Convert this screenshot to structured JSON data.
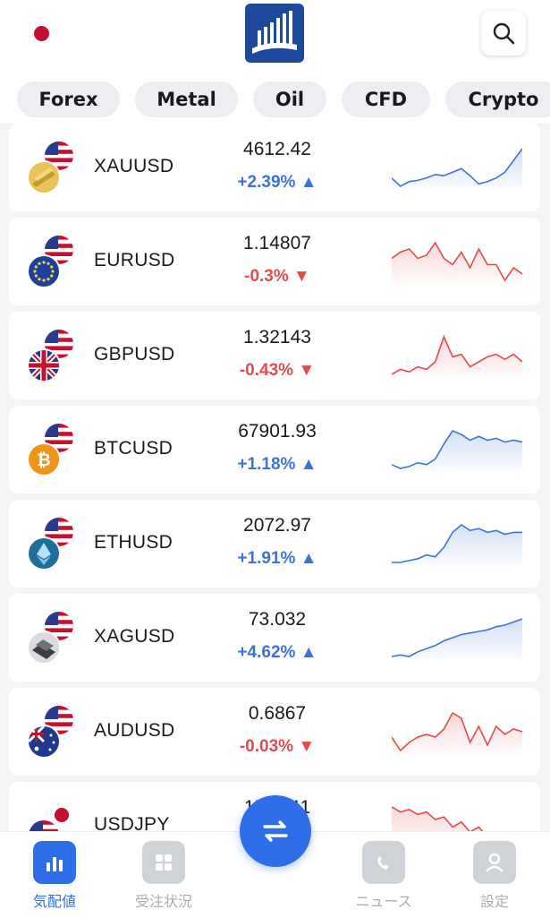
{
  "header": {
    "flag_icon": "japan-flag-icon",
    "logo_icon": "bar-chart-logo-icon",
    "search_icon": "search-icon"
  },
  "tabs": [
    {
      "label": "Forex"
    },
    {
      "label": "Metal"
    },
    {
      "label": "Oil"
    },
    {
      "label": "CFD"
    },
    {
      "label": "Crypto"
    }
  ],
  "instruments": [
    {
      "symbol": "XAUUSD",
      "price": "4612.42",
      "change": "+2.39%",
      "trend": "up",
      "base_icon": "gold-bars-icon",
      "spark": [
        55,
        48,
        52,
        53,
        55,
        58,
        57,
        60,
        63,
        57,
        50,
        52,
        55,
        60,
        70,
        80
      ]
    },
    {
      "symbol": "EURUSD",
      "price": "1.14807",
      "change": "-0.3%",
      "trend": "down",
      "base_icon": "eu-flag-icon",
      "spark": [
        60,
        62,
        63,
        60,
        61,
        65,
        60,
        58,
        62,
        57,
        63,
        58,
        58,
        53,
        57,
        55
      ]
    },
    {
      "symbol": "GBPUSD",
      "price": "1.32143",
      "change": "-0.43%",
      "trend": "down",
      "base_icon": "uk-flag-icon",
      "spark": [
        55,
        57,
        56,
        58,
        57,
        60,
        70,
        62,
        63,
        58,
        60,
        62,
        63,
        61,
        63,
        60
      ]
    },
    {
      "symbol": "BTCUSD",
      "price": "67901.93",
      "change": "+1.18%",
      "trend": "up",
      "base_icon": "bitcoin-icon",
      "spark": [
        52,
        50,
        51,
        53,
        52,
        55,
        63,
        70,
        68,
        65,
        67,
        65,
        66,
        64,
        65,
        64
      ]
    },
    {
      "symbol": "ETHUSD",
      "price": "2072.97",
      "change": "+1.91%",
      "trend": "up",
      "base_icon": "ethereum-icon",
      "spark": [
        50,
        50,
        51,
        52,
        54,
        53,
        58,
        66,
        70,
        67,
        68,
        66,
        67,
        65,
        66,
        66
      ]
    },
    {
      "symbol": "XAGUSD",
      "price": "73.032",
      "change": "+4.62%",
      "trend": "up",
      "base_icon": "silver-bars-icon",
      "spark": [
        50,
        51,
        50,
        53,
        55,
        57,
        60,
        62,
        64,
        65,
        66,
        67,
        69,
        70,
        72,
        74
      ]
    },
    {
      "symbol": "AUDUSD",
      "price": "0.6867",
      "change": "-0.03%",
      "trend": "down",
      "base_icon": "australia-flag-icon",
      "spark": [
        55,
        50,
        53,
        55,
        56,
        55,
        58,
        64,
        62,
        53,
        59,
        52,
        59,
        56,
        58,
        57
      ]
    },
    {
      "symbol": "USDJPY",
      "price": "158.511",
      "change": "",
      "trend": "down",
      "base_icon": "japan-flag-icon",
      "spark": [
        60,
        58,
        59,
        57,
        58,
        55,
        56,
        52,
        54,
        50,
        52,
        48,
        50,
        46,
        48,
        45
      ]
    }
  ],
  "bottom_nav": [
    {
      "label": "気配値",
      "icon": "bar-chart-icon",
      "active": true
    },
    {
      "label": "受注状況",
      "icon": "grid-icon",
      "active": false
    },
    {
      "label": "",
      "icon": "swap-arrows-icon",
      "active": false
    },
    {
      "label": "ニュース",
      "icon": "news-icon",
      "active": false
    },
    {
      "label": "設定",
      "icon": "user-icon",
      "active": false
    }
  ],
  "colors": {
    "accent": "#2f6ee9",
    "up": "#3e72d8",
    "down": "#e24b4b",
    "logo_bg": "#1d4a9c"
  }
}
